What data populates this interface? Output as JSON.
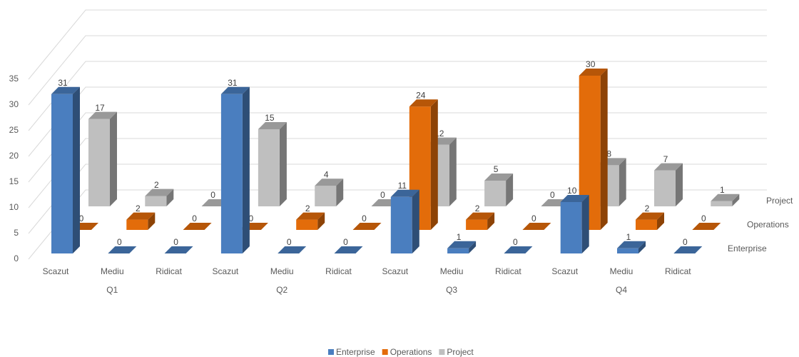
{
  "chart_data": {
    "type": "bar3d",
    "categories": [
      "Scazut",
      "Mediu",
      "Ridicat",
      "Scazut",
      "Mediu",
      "Ridicat",
      "Scazut",
      "Mediu",
      "Ridicat",
      "Scazut",
      "Mediu",
      "Ridicat"
    ],
    "groups": [
      "Q1",
      "Q2",
      "Q3",
      "Q4"
    ],
    "series": [
      {
        "name": "Enterprise",
        "color": "#4a7ebf",
        "values": [
          31,
          0,
          0,
          31,
          0,
          0,
          11,
          1,
          0,
          10,
          1,
          0
        ]
      },
      {
        "name": "Operations",
        "color": "#e36c0a",
        "values": [
          0,
          2,
          0,
          0,
          2,
          0,
          24,
          2,
          0,
          30,
          2,
          0
        ]
      },
      {
        "name": "Project",
        "color": "#bfbfbf",
        "values": [
          17,
          2,
          0,
          15,
          4,
          0,
          12,
          5,
          0,
          8,
          7,
          1
        ]
      }
    ],
    "ylim": [
      0,
      35
    ],
    "yticks": [
      0,
      5,
      10,
      15,
      20,
      25,
      30,
      35
    ],
    "grid": true,
    "legend": "bottom"
  }
}
